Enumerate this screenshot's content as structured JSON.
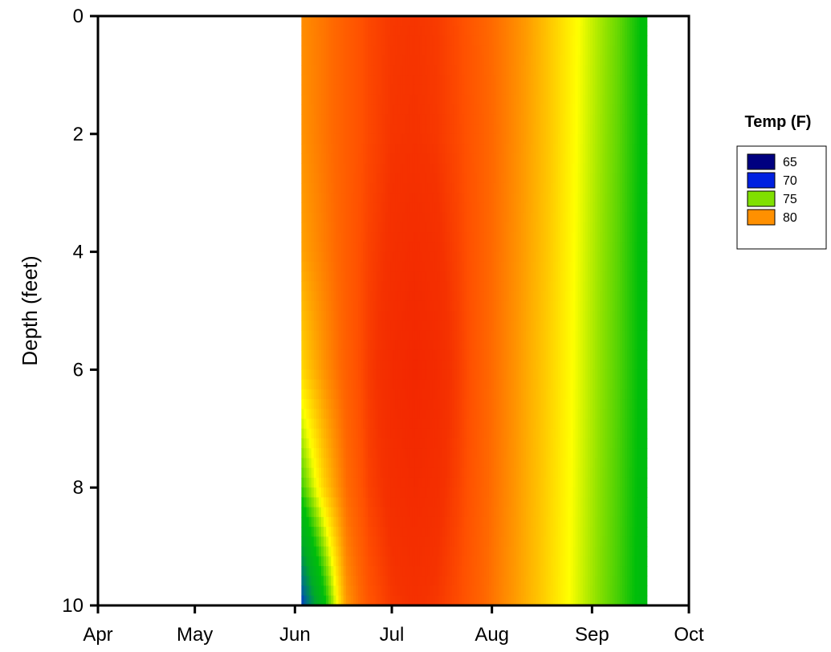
{
  "chart_data": {
    "type": "heatmap",
    "title": "",
    "xlabel": "",
    "ylabel": "Depth (feet)",
    "x_tick_labels": [
      "Apr",
      "May",
      "Jun",
      "Jul",
      "Aug",
      "Sep",
      "Oct"
    ],
    "y_tick_labels": [
      "0",
      "2",
      "4",
      "6",
      "8",
      "10"
    ],
    "x_range": [
      "Apr",
      "Oct"
    ],
    "ylim": [
      0,
      10
    ],
    "y_inverted": true,
    "z_label": "Temp (F)",
    "data_extent": {
      "x_start": "2013-06-03",
      "x_end": "2013-09-18",
      "y_start": 0,
      "y_end": 10
    },
    "samples": {
      "x": [
        "2013-06-03",
        "2013-06-10",
        "2013-06-17",
        "2013-06-24",
        "2013-07-01",
        "2013-07-08",
        "2013-07-15",
        "2013-07-22",
        "2013-07-29",
        "2013-08-05",
        "2013-08-12",
        "2013-08-19",
        "2013-08-26",
        "2013-09-02",
        "2013-09-09",
        "2013-09-16"
      ],
      "y": [
        0,
        2,
        4,
        6,
        8,
        10
      ],
      "z": [
        [
          80.8,
          81.6,
          82.6,
          83.5,
          84.0,
          84.1,
          83.9,
          83.3,
          82.4,
          81.4,
          80.3,
          79.0,
          77.8,
          76.6,
          75.5,
          74.0
        ],
        [
          80.6,
          81.6,
          82.6,
          83.5,
          84.1,
          84.2,
          84.0,
          83.4,
          82.5,
          81.4,
          80.2,
          79.0,
          77.7,
          76.5,
          75.4,
          74.0
        ],
        [
          80.1,
          81.3,
          82.6,
          83.7,
          84.4,
          84.7,
          84.4,
          83.6,
          82.5,
          81.3,
          80.1,
          78.9,
          77.6,
          76.4,
          75.3,
          73.9
        ],
        [
          78.5,
          80.6,
          82.5,
          83.9,
          84.8,
          85.2,
          84.8,
          83.8,
          82.5,
          81.2,
          79.9,
          78.7,
          77.5,
          76.3,
          75.2,
          73.9
        ],
        [
          74.8,
          78.7,
          81.9,
          83.7,
          84.5,
          84.8,
          84.5,
          83.6,
          82.4,
          81.1,
          79.8,
          78.6,
          77.4,
          76.2,
          75.1,
          73.8
        ],
        [
          67.5,
          73.5,
          80.5,
          83.0,
          84.0,
          84.3,
          84.0,
          83.3,
          82.2,
          80.9,
          79.7,
          78.5,
          77.3,
          76.1,
          75.0,
          73.7
        ]
      ]
    },
    "legend": {
      "title": "Temp (F)",
      "placement": "right",
      "entries": [
        {
          "label": "65",
          "color": "#000080"
        },
        {
          "label": "70",
          "color": "#0020E0"
        },
        {
          "label": "75",
          "color": "#80E000"
        },
        {
          "label": "80",
          "color": "#FF9000"
        }
      ]
    },
    "grid": false
  }
}
